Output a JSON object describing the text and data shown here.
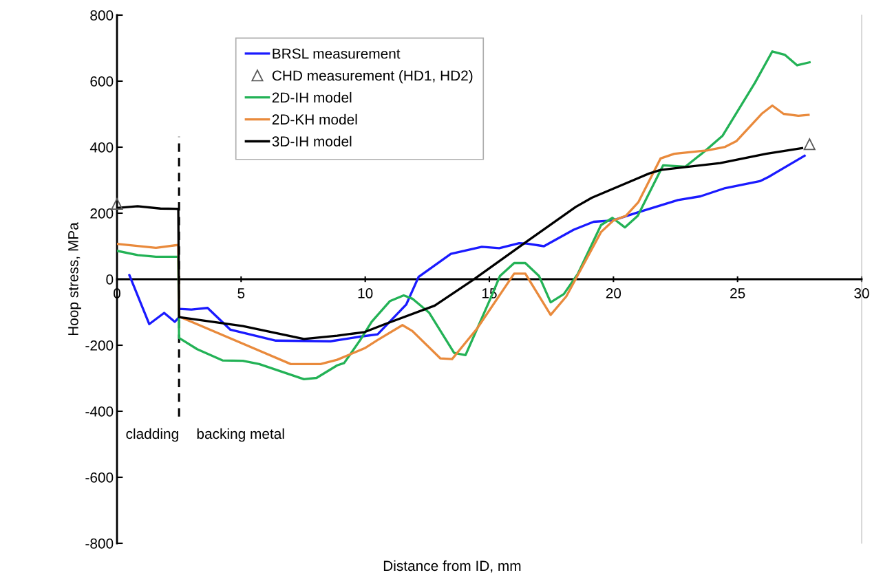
{
  "chart_data": {
    "type": "line",
    "xlabel": "Distance from ID, mm",
    "ylabel": "Hoop stress, MPa",
    "xlim": [
      0,
      30
    ],
    "xticks": [
      0,
      5,
      10,
      15,
      20,
      25,
      30
    ],
    "ylim": [
      -800,
      800
    ],
    "yticks": [
      -800,
      -600,
      -400,
      -200,
      0,
      200,
      400,
      600,
      800
    ],
    "grid": false,
    "legend": "top",
    "marker": "none",
    "line_style": "solid",
    "series": [
      {
        "name": "BRSL measurement",
        "color": "#1a1aff",
        "x": [
          0.5,
          1.3,
          1.9,
          2.33,
          2.5,
          2.5,
          3.0,
          3.65,
          4.57,
          6.4,
          8.6,
          9.8,
          10.5,
          11.65,
          12.15,
          13.45,
          14.7,
          15.4,
          16.2,
          16.5,
          17.2,
          18.4,
          19.2,
          19.96,
          21.0,
          22.6,
          23.5,
          24.5,
          25.9,
          26.25,
          27.7
        ],
        "values": [
          12,
          -136,
          -102,
          -129,
          -115,
          -90,
          -92,
          -87,
          -153,
          -186,
          -188,
          -174,
          -167,
          -77,
          7,
          77,
          98,
          94,
          109,
          108,
          100,
          150,
          174,
          178,
          203,
          240,
          251,
          276,
          297,
          310,
          374
        ]
      },
      {
        "name": "CHD measurement (HD1, HD2)",
        "type": "scatter",
        "marker": "triangle",
        "color": "#595959",
        "x": [
          0,
          27.9
        ],
        "values": [
          228,
          409
        ]
      },
      {
        "name": "2D-IH model",
        "color": "#23b256",
        "x": [
          0,
          0.83,
          1.57,
          2.47,
          2.5,
          3.23,
          4.25,
          5.07,
          5.73,
          7.53,
          8.04,
          8.87,
          9.15,
          9.8,
          10.26,
          11.0,
          11.55,
          11.9,
          12.57,
          13.58,
          14.04,
          15.06,
          15.43,
          16.0,
          16.45,
          17.0,
          17.47,
          18.0,
          18.57,
          19.5,
          19.96,
          20.46,
          20.98,
          22.0,
          22.9,
          23.65,
          24.4,
          25.7,
          26.4,
          26.9,
          27.4,
          27.9
        ],
        "values": [
          86,
          73,
          68,
          68,
          -178,
          -212,
          -246,
          -247,
          -257,
          -303,
          -299,
          -261,
          -254,
          -184,
          -129,
          -66,
          -49,
          -59,
          -101,
          -223,
          -230,
          -56,
          10,
          49,
          49,
          10,
          -70,
          -45,
          17,
          164,
          186,
          157,
          192,
          345,
          341,
          386,
          435,
          595,
          690,
          680,
          648,
          657
        ]
      },
      {
        "name": "2D-KH model",
        "color": "#e98a3c",
        "x": [
          0,
          1.57,
          2.47,
          2.5,
          7.0,
          8.2,
          8.87,
          9.98,
          10.5,
          11.5,
          11.9,
          13.03,
          13.5,
          14.5,
          16.0,
          16.45,
          17.47,
          18.1,
          19.5,
          20.0,
          20.5,
          21.0,
          21.9,
          22.45,
          23.75,
          24.5,
          24.95,
          25.97,
          26.4,
          26.85,
          27.45,
          27.86
        ],
        "values": [
          107,
          95,
          104,
          -113,
          -257,
          -257,
          -244,
          -209,
          -184,
          -139,
          -157,
          -240,
          -242,
          -150,
          17,
          17,
          -108,
          -52,
          143,
          178,
          192,
          233,
          366,
          380,
          390,
          401,
          418,
          501,
          526,
          501,
          495,
          498
        ]
      },
      {
        "name": "3D-IH model",
        "color": "#000000",
        "x": [
          0,
          0.83,
          1.75,
          2.47,
          2.5,
          5.07,
          7.53,
          8.87,
          9.98,
          10.8,
          12.8,
          14.33,
          16.45,
          18.48,
          19.13,
          21.43,
          21.9,
          24.3,
          26.15,
          27.6
        ],
        "values": [
          216,
          221,
          214,
          213,
          -115,
          -142,
          -181,
          -171,
          -160,
          -136,
          -80,
          -3,
          111,
          219,
          247,
          320,
          331,
          352,
          380,
          397
        ]
      }
    ],
    "ref_lines": [
      {
        "axis": "x",
        "value": 2.5,
        "color": "#000000",
        "line_style": "dashed"
      }
    ],
    "annotations": [
      "cladding",
      "backing metal"
    ]
  }
}
